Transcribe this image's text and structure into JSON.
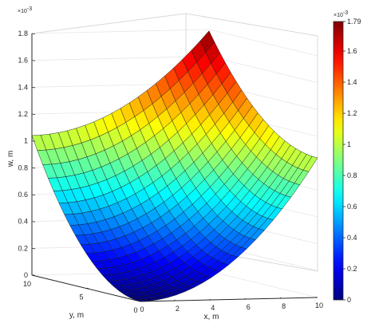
{
  "chart_data": {
    "type": "surface",
    "x": [
      0,
      10
    ],
    "y": [
      0,
      10
    ],
    "grid_size": 21,
    "z_corners": {
      "x0_y0": 0,
      "x10_y0": 1.04,
      "x0_y10": 1.04,
      "x10_y10": 1.79
    },
    "z_scale_exponent": "-3",
    "xlabel": "x, m",
    "ylabel": "y, m",
    "zlabel": "w, m",
    "xlim": [
      0,
      10
    ],
    "ylim": [
      0,
      10
    ],
    "zlim": [
      0,
      1.8
    ],
    "x_ticks": [
      "0",
      "2",
      "4",
      "6",
      "8",
      "10"
    ],
    "y_ticks": [
      "0",
      "5",
      "10"
    ],
    "z_ticks": [
      "0",
      "0.2",
      "0.4",
      "0.6",
      "0.8",
      "1",
      "1.2",
      "1.4",
      "1.6",
      "1.8"
    ],
    "z_exponent_label": "×10",
    "colorbar": {
      "min": 0,
      "max": 1.79,
      "ticks": [
        "0",
        "0.2",
        "0.4",
        "0.6",
        "0.8",
        "1",
        "1.2",
        "1.4",
        "1.6",
        "1.79"
      ],
      "exponent_label": "×10",
      "colormap": "jet"
    },
    "grid": true
  }
}
